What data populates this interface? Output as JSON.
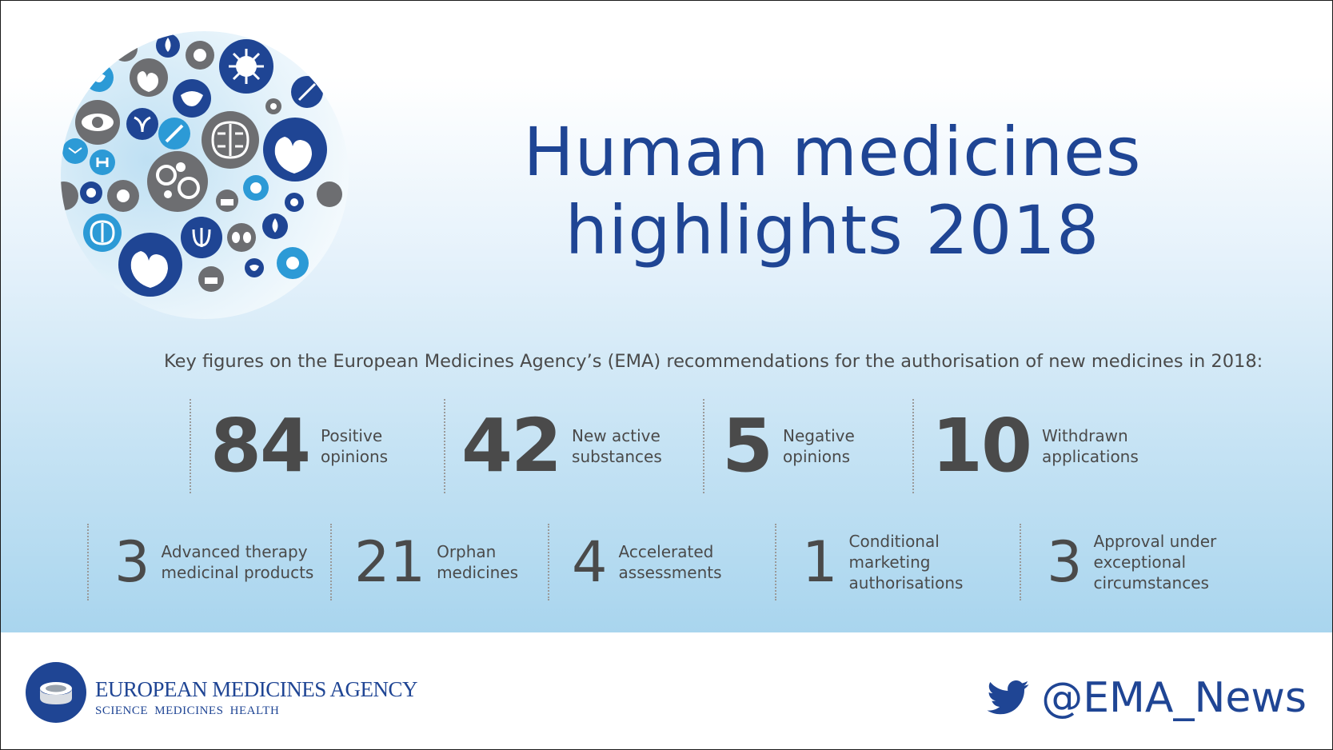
{
  "title": {
    "line1": "Human medicines",
    "line2": "highlights 2018"
  },
  "intro": "Key figures on the European Medicines Agency’s (EMA) recommendations for the authorisation of new medicines in 2018:",
  "main_stats": [
    {
      "value": "84",
      "label": "Positive\nopinions"
    },
    {
      "value": "42",
      "label": "New active\nsubstances"
    },
    {
      "value": "5",
      "label": "Negative\nopinions"
    },
    {
      "value": "10",
      "label": "Withdrawn\napplications"
    }
  ],
  "secondary_stats": [
    {
      "value": "3",
      "label": "Advanced therapy\nmedicinal products"
    },
    {
      "value": "21",
      "label": "Orphan\nmedicines"
    },
    {
      "value": "4",
      "label": "Accelerated\nassessments"
    },
    {
      "value": "1",
      "label": "Conditional\nmarketing\nauthorisations"
    },
    {
      "value": "3",
      "label": "Approval under\nexceptional\ncircumstances"
    }
  ],
  "footer": {
    "agency_name": "EUROPEAN MEDICINES AGENCY",
    "tagline": "SCIENCE MEDICINES HEALTH",
    "twitter_icon": "twitter-bird-icon",
    "twitter_handle": "@EMA_News"
  },
  "colors": {
    "brand_blue": "#1f4594",
    "text_grey": "#4a4a4a",
    "icon_grey": "#6d6e71",
    "icon_light_blue": "#2c9ad6"
  },
  "illustration_icons": [
    "heart-icon",
    "brain-icon",
    "eye-icon",
    "cells-icon",
    "virus-icon",
    "syringe-icon",
    "liver-icon",
    "uterus-icon",
    "drop-icon",
    "kidneys-icon",
    "molecule-icon",
    "thyroid-icon",
    "skin-icon",
    "bacteria-icon"
  ]
}
